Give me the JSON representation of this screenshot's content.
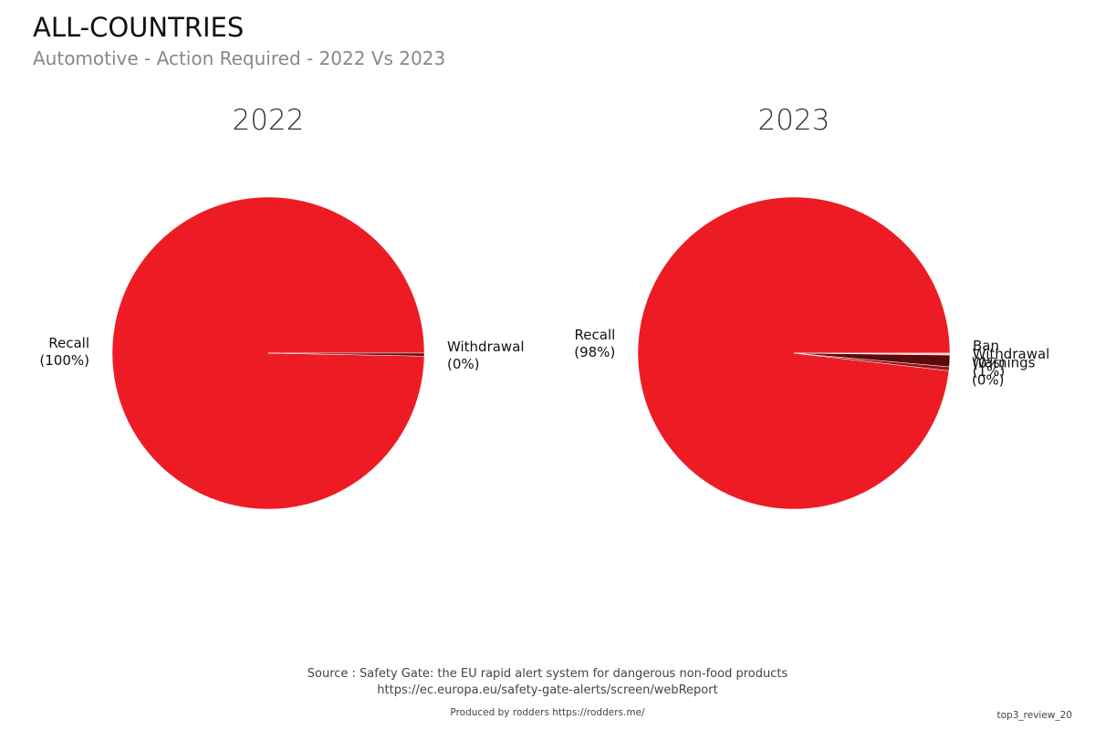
{
  "title": "ALL-COUNTRIES",
  "subtitle": "Automotive - Action Required - 2022 Vs 2023",
  "chart_data": [
    {
      "type": "pie",
      "title": "2022",
      "categories": [
        "Recall",
        "Withdrawal"
      ],
      "values": [
        99.7,
        0.3
      ],
      "value_labels": [
        "(100%)",
        "(0%)"
      ],
      "colors": [
        "#ed1c24",
        "#5a0a0c"
      ]
    },
    {
      "type": "pie",
      "title": "2023",
      "categories": [
        "Recall",
        "Ban",
        "Withdrawal",
        "Warnings"
      ],
      "values": [
        98.2,
        0.2,
        1.2,
        0.4
      ],
      "value_labels": [
        "(98%)",
        "(0%)",
        "(1%)",
        "(0%)"
      ],
      "colors": [
        "#ed1c24",
        "#f6c9cb",
        "#5a0a0c",
        "#9b1418"
      ]
    }
  ],
  "source": "Source : Safety Gate: the EU rapid alert system for dangerous non-food products",
  "source_url": "https://ec.europa.eu/safety-gate-alerts/screen/webReport",
  "credit": "Produced by rodders https://rodders.me/",
  "tag": "top3_review_20"
}
